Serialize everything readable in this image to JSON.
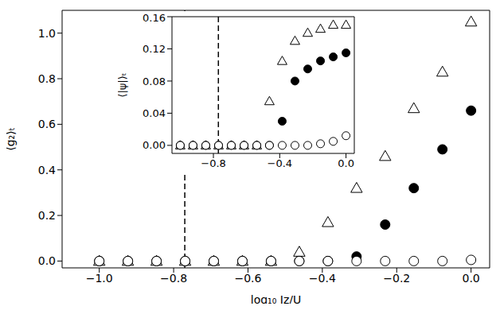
{
  "chart_data": [
    {
      "type": "scatter",
      "x_label": "log₁₀ Jz/U",
      "y_label": "⟨g₂⟩ₜ",
      "x": [
        -1.0,
        -0.923,
        -0.846,
        -0.769,
        -0.692,
        -0.615,
        -0.538,
        -0.462,
        -0.385,
        -0.308,
        -0.231,
        -0.154,
        -0.077,
        0.0
      ],
      "series": [
        {
          "color": "#000000",
          "marker": "triangle_open",
          "values": [
            0,
            0,
            0,
            0,
            0,
            0,
            0,
            0.04,
            0.17,
            0.32,
            0.46,
            0.67,
            0.83,
            1.05
          ]
        },
        {
          "color": "#000000",
          "marker": "circle_filled",
          "values": [
            0,
            0,
            0,
            0,
            0,
            0,
            0,
            0,
            0,
            0.02,
            0.16,
            0.32,
            0.49,
            0.66
          ]
        },
        {
          "color": "#000000",
          "marker": "circle_open",
          "values": [
            0,
            0,
            0,
            0,
            0,
            0,
            0,
            0,
            0,
            0,
            0,
            0,
            0,
            0.005
          ]
        }
      ],
      "xlim": [
        -1.1,
        0.05
      ],
      "xticks": [
        {
          "value": -1.0,
          "label": "−1.0"
        },
        {
          "value": -0.8,
          "label": "−0.8"
        },
        {
          "value": -0.6,
          "label": "−0.6"
        },
        {
          "value": -0.4,
          "label": "−0.4"
        },
        {
          "value": -0.2,
          "label": "−0.2"
        },
        {
          "value": 0,
          "label": "0.0"
        }
      ],
      "ylim": [
        -0.03,
        1.1
      ],
      "yticks": [
        {
          "value": 0,
          "label": "0.0"
        },
        {
          "value": 0.2,
          "label": "0.2"
        },
        {
          "value": 0.4,
          "label": "0.4"
        },
        {
          "value": 0.6,
          "label": "0.6"
        },
        {
          "value": 0.8,
          "label": "0.8"
        },
        {
          "value": 1.0,
          "label": "1.0"
        }
      ],
      "vline_x": -0.77,
      "line_style": "dashed",
      "grid": false
    },
    {
      "type": "scatter",
      "y_label": "⟨|ψ|⟩ₜ",
      "x": [
        -1.0,
        -0.923,
        -0.846,
        -0.769,
        -0.692,
        -0.615,
        -0.538,
        -0.462,
        -0.385,
        -0.308,
        -0.231,
        -0.154,
        -0.077,
        0.0
      ],
      "series": [
        {
          "color": "#000000",
          "marker": "triangle_open",
          "values": [
            0,
            0,
            0,
            0,
            0,
            0,
            0,
            0.055,
            0.105,
            0.13,
            0.14,
            0.145,
            0.15,
            0.15
          ]
        },
        {
          "color": "#000000",
          "marker": "circle_filled",
          "values": [
            0,
            0,
            0,
            0,
            0,
            0,
            0,
            0,
            0.03,
            0.08,
            0.095,
            0.105,
            0.11,
            0.115
          ]
        },
        {
          "color": "#000000",
          "marker": "circle_open",
          "values": [
            0,
            0,
            0,
            0,
            0,
            0,
            0,
            0,
            0,
            0,
            0,
            0.002,
            0.005,
            0.012
          ]
        }
      ],
      "xlim": [
        -1.05,
        0.05
      ],
      "xticks": [
        {
          "value": -0.8,
          "label": "−0.8"
        },
        {
          "value": -0.4,
          "label": "−0.4"
        },
        {
          "value": 0,
          "label": "0.0"
        }
      ],
      "ylim": [
        -0.01,
        0.16
      ],
      "yticks": [
        {
          "value": 0,
          "label": "0.00"
        },
        {
          "value": 0.04,
          "label": "0.04"
        },
        {
          "value": 0.08,
          "label": "0.08"
        },
        {
          "value": 0.12,
          "label": "0.12"
        },
        {
          "value": 0.16,
          "label": "0.16"
        }
      ],
      "vline_x": -0.77,
      "line_style": "dashed",
      "grid": false
    }
  ]
}
